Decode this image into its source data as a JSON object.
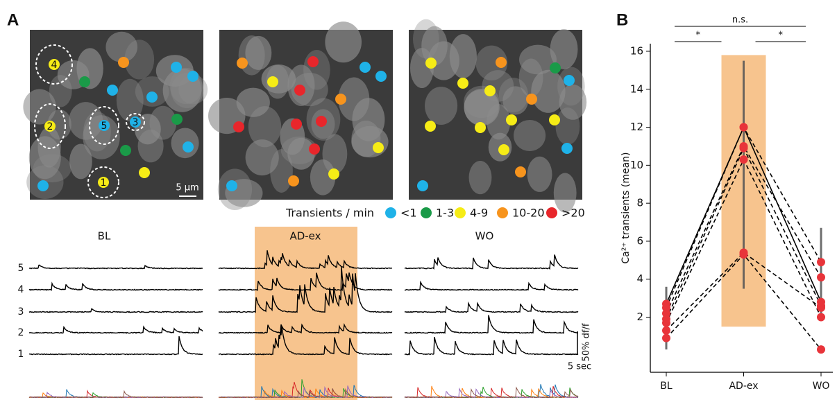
{
  "panel_labels": [
    "A",
    "B"
  ],
  "panel_a": {
    "scale_bar": "5 µm",
    "cell_labels": [
      "4",
      "2",
      "5",
      "3",
      "1"
    ],
    "legend": {
      "title": "Transients / min",
      "items": [
        {
          "label": "<1",
          "color": "#1fb2e8"
        },
        {
          "label": "1-3",
          "color": "#1a9a48"
        },
        {
          "label": "4-9",
          "color": "#f6ec16"
        },
        {
          "label": "10-20",
          "color": "#f7941d"
        },
        {
          "label": ">20",
          "color": "#e8262b"
        }
      ]
    },
    "conditions": [
      "BL",
      "AD-ex",
      "WO"
    ],
    "rows": [
      "5",
      "4",
      "3",
      "2",
      "1"
    ],
    "scale_y": "50% df/f",
    "scale_x": "5 sec"
  },
  "chart_data": {
    "type": "line",
    "ylabel": "Ca²⁺ transients (mean)",
    "categories": [
      "BL",
      "AD-ex",
      "WO"
    ],
    "ylim": [
      -0.9,
      16.4
    ],
    "yticks": [
      2,
      4,
      6,
      8,
      10,
      12,
      14,
      16
    ],
    "line_color": "#000000",
    "marker_color": "#e8343a",
    "series": [
      {
        "style": "solid",
        "values": [
          2.7,
          12.0,
          2.8
        ]
      },
      {
        "style": "dashed",
        "values": [
          2.5,
          12.0,
          4.9
        ]
      },
      {
        "style": "dashed",
        "values": [
          2.2,
          11.0,
          4.1
        ]
      },
      {
        "style": "dashed",
        "values": [
          1.9,
          10.9,
          2.6
        ]
      },
      {
        "style": "dashed",
        "values": [
          1.7,
          10.3,
          2.0
        ]
      },
      {
        "style": "dashed",
        "values": [
          1.3,
          5.4,
          2.5
        ]
      },
      {
        "style": "dashed",
        "values": [
          0.9,
          5.3,
          0.3
        ]
      }
    ],
    "error_bars": [
      {
        "low": 0.3,
        "high": 3.6
      },
      {
        "low": 3.5,
        "high": 15.5
      },
      {
        "low": 2.0,
        "high": 6.7
      }
    ],
    "highlight": {
      "category": "AD-ex",
      "range": [
        1.5,
        15.8
      ],
      "color": "#f7c48e"
    },
    "significance": [
      {
        "pair": [
          "BL",
          "WO"
        ],
        "label": "n.s."
      },
      {
        "pair": [
          "BL",
          "AD-ex"
        ],
        "label": "*"
      },
      {
        "pair": [
          "AD-ex",
          "WO"
        ],
        "label": "*"
      }
    ]
  }
}
